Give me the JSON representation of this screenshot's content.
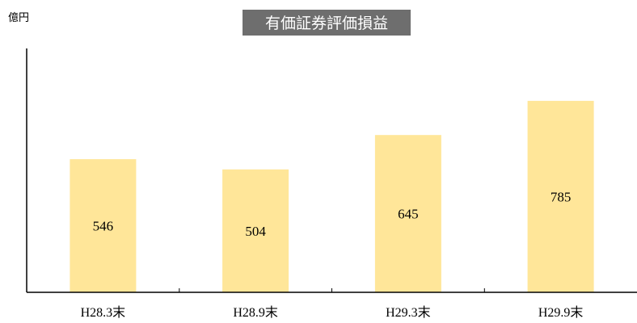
{
  "chart_data": {
    "type": "bar",
    "title": "有価証券評価損益",
    "ylabel": "億円",
    "xlabel": "",
    "categories": [
      "H28.3末",
      "H28.9末",
      "H29.3末",
      "H29.9末"
    ],
    "values": [
      546,
      504,
      645,
      785
    ],
    "data_labels": [
      "546",
      "504",
      "645",
      "785"
    ],
    "ylim": [
      0,
      1000
    ],
    "grid": false,
    "legend": "none",
    "colors": {
      "bar": "#FFE699",
      "title_background": "#6E6E6E",
      "title_text": "#FFFFFF",
      "axis": "#000000"
    }
  }
}
